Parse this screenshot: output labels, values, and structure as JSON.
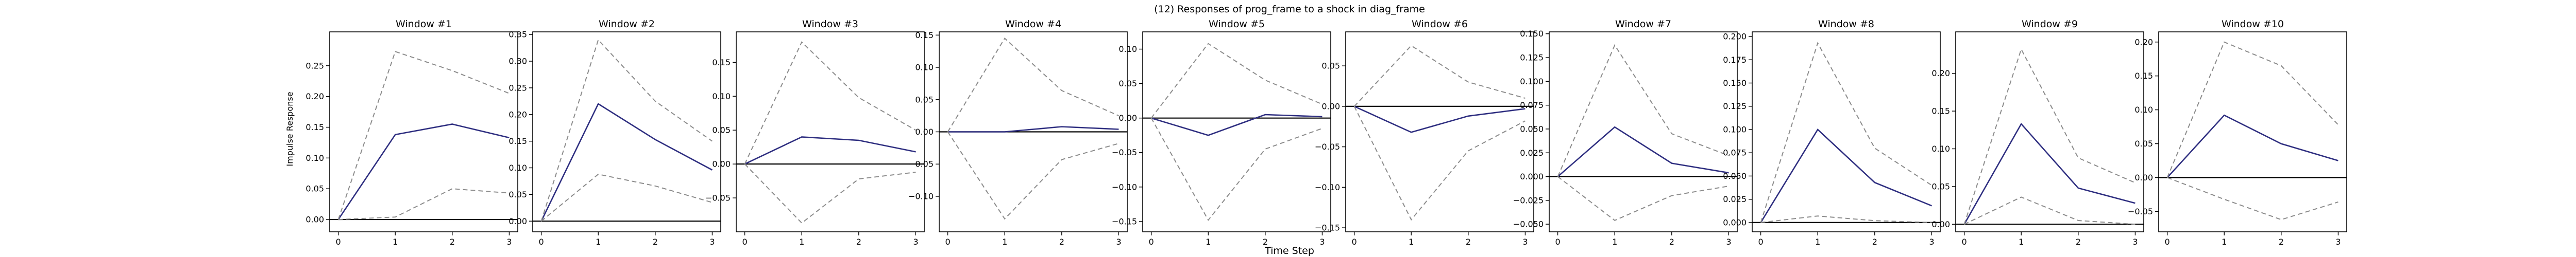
{
  "chart_data": {
    "type": "line",
    "title": "(12) Responses of prog_frame to a shock in diag_frame",
    "xlabel": "Time Step",
    "ylabel": "Impulse Response",
    "x": [
      0,
      1,
      2,
      3
    ],
    "xticks": [
      "0",
      "1",
      "2",
      "3"
    ],
    "xlim": [
      -0.15,
      3.15
    ],
    "line_colors": {
      "response": "#2e2e80",
      "band": "#8c8c8c",
      "zero": "#000000"
    },
    "grid": false,
    "legend": "none",
    "panels": [
      {
        "title": "Window #1",
        "ylim": [
          -0.02,
          0.305
        ],
        "yticks": [
          "0.00",
          "0.05",
          "0.10",
          "0.15",
          "0.20",
          "0.25"
        ],
        "ytick_values": [
          0,
          0.05,
          0.1,
          0.15,
          0.2,
          0.25
        ],
        "series": [
          {
            "role": "response",
            "values": [
              0,
              0.138,
              0.155,
              0.133
            ]
          },
          {
            "role": "upper",
            "values": [
              0,
              0.273,
              0.242,
              0.205
            ]
          },
          {
            "role": "lower",
            "values": [
              0,
              0.004,
              0.05,
              0.043
            ]
          }
        ]
      },
      {
        "title": "Window #2",
        "ylim": [
          -0.02,
          0.355
        ],
        "yticks": [
          "0.00",
          "0.05",
          "0.10",
          "0.15",
          "0.20",
          "0.25",
          "0.30",
          "0.35"
        ],
        "ytick_values": [
          0,
          0.05,
          0.1,
          0.15,
          0.2,
          0.25,
          0.3,
          0.35
        ],
        "series": [
          {
            "role": "response",
            "values": [
              0,
              0.22,
              0.153,
              0.096
            ]
          },
          {
            "role": "upper",
            "values": [
              0,
              0.34,
              0.225,
              0.15
            ]
          },
          {
            "role": "lower",
            "values": [
              0,
              0.088,
              0.066,
              0.035
            ]
          }
        ]
      },
      {
        "title": "Window #3",
        "ylim": [
          -0.1,
          0.195
        ],
        "yticks": [
          "−0.05",
          "0.00",
          "0.05",
          "0.10",
          "0.15"
        ],
        "ytick_values": [
          -0.05,
          0,
          0.05,
          0.1,
          0.15
        ],
        "series": [
          {
            "role": "response",
            "values": [
              0,
              0.04,
              0.035,
              0.018
            ]
          },
          {
            "role": "upper",
            "values": [
              0,
              0.18,
              0.098,
              0.05
            ]
          },
          {
            "role": "lower",
            "values": [
              0,
              -0.087,
              -0.022,
              -0.012
            ]
          }
        ]
      },
      {
        "title": "Window #4",
        "ylim": [
          -0.155,
          0.155
        ],
        "yticks": [
          "−0.10",
          "−0.05",
          "0.00",
          "0.05",
          "0.10",
          "0.15"
        ],
        "ytick_values": [
          -0.1,
          -0.05,
          0,
          0.05,
          0.1,
          0.15
        ],
        "series": [
          {
            "role": "response",
            "values": [
              0,
              0.0,
              0.008,
              0.004
            ]
          },
          {
            "role": "upper",
            "values": [
              0,
              0.145,
              0.064,
              0.025
            ]
          },
          {
            "role": "lower",
            "values": [
              0,
              -0.135,
              -0.043,
              -0.018
            ]
          }
        ]
      },
      {
        "title": "Window #5",
        "ylim": [
          -0.165,
          0.125
        ],
        "yticks": [
          "−0.15",
          "−0.10",
          "−0.05",
          "0.00",
          "0.05",
          "0.10"
        ],
        "ytick_values": [
          -0.15,
          -0.1,
          -0.05,
          0,
          0.05,
          0.1
        ],
        "series": [
          {
            "role": "response",
            "values": [
              0,
              -0.025,
              0.005,
              0.002
            ]
          },
          {
            "role": "upper",
            "values": [
              0,
              0.108,
              0.055,
              0.02
            ]
          },
          {
            "role": "lower",
            "values": [
              0,
              -0.148,
              -0.045,
              -0.015
            ]
          }
        ]
      },
      {
        "title": "Window #6",
        "ylim": [
          -0.155,
          0.092
        ],
        "yticks": [
          "−0.15",
          "−0.10",
          "−0.05",
          "0.00",
          "0.05"
        ],
        "ytick_values": [
          -0.15,
          -0.1,
          -0.05,
          0,
          0.05
        ],
        "series": [
          {
            "role": "response",
            "values": [
              0,
              -0.032,
              -0.012,
              -0.003
            ]
          },
          {
            "role": "upper",
            "values": [
              0,
              0.075,
              0.03,
              0.01
            ]
          },
          {
            "role": "lower",
            "values": [
              0,
              -0.14,
              -0.055,
              -0.018
            ]
          }
        ]
      },
      {
        "title": "Window #7",
        "ylim": [
          -0.058,
          0.152
        ],
        "yticks": [
          "−0.050",
          "−0.025",
          "0.000",
          "0.025",
          "0.050",
          "0.075",
          "0.100",
          "0.125",
          "0.150"
        ],
        "ytick_values": [
          -0.05,
          -0.025,
          0,
          0.025,
          0.05,
          0.075,
          0.1,
          0.125,
          0.15
        ],
        "series": [
          {
            "role": "response",
            "values": [
              0,
              0.052,
              0.014,
              0.004
            ]
          },
          {
            "role": "upper",
            "values": [
              0,
              0.138,
              0.045,
              0.022
            ]
          },
          {
            "role": "lower",
            "values": [
              0,
              -0.046,
              -0.02,
              -0.01
            ]
          }
        ]
      },
      {
        "title": "Window #8",
        "ylim": [
          -0.01,
          0.205
        ],
        "yticks": [
          "0.000",
          "0.025",
          "0.050",
          "0.075",
          "0.100",
          "0.125",
          "0.150",
          "0.175",
          "0.200"
        ],
        "ytick_values": [
          0,
          0.025,
          0.05,
          0.075,
          0.1,
          0.125,
          0.15,
          0.175,
          0.2
        ],
        "series": [
          {
            "role": "response",
            "values": [
              0,
              0.1,
              0.043,
              0.018
            ]
          },
          {
            "role": "upper",
            "values": [
              0,
              0.193,
              0.08,
              0.04
            ]
          },
          {
            "role": "lower",
            "values": [
              0,
              0.007,
              0.002,
              0.0
            ]
          }
        ]
      },
      {
        "title": "Window #9",
        "ylim": [
          -0.01,
          0.255
        ],
        "yticks": [
          "0.00",
          "0.05",
          "0.10",
          "0.15",
          "0.20"
        ],
        "ytick_values": [
          0,
          0.05,
          0.1,
          0.15,
          0.2
        ],
        "series": [
          {
            "role": "response",
            "values": [
              0,
              0.133,
              0.048,
              0.028
            ]
          },
          {
            "role": "upper",
            "values": [
              0,
              0.232,
              0.088,
              0.055
            ]
          },
          {
            "role": "lower",
            "values": [
              0,
              0.036,
              0.005,
              0.0
            ]
          }
        ]
      },
      {
        "title": "Window #10",
        "ylim": [
          -0.08,
          0.215
        ],
        "yticks": [
          "−0.05",
          "0.00",
          "0.05",
          "0.10",
          "0.15",
          "0.20"
        ],
        "ytick_values": [
          -0.05,
          0,
          0.05,
          0.1,
          0.15,
          0.2
        ],
        "series": [
          {
            "role": "response",
            "values": [
              0,
              0.092,
              0.05,
              0.025
            ]
          },
          {
            "role": "upper",
            "values": [
              0,
              0.2,
              0.165,
              0.078
            ]
          },
          {
            "role": "lower",
            "values": [
              0,
              -0.032,
              -0.062,
              -0.036
            ]
          }
        ]
      }
    ]
  }
}
